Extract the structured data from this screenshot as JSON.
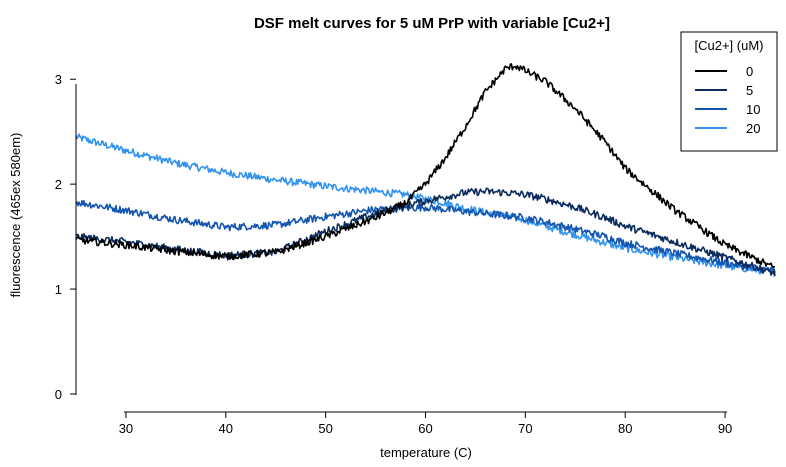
{
  "chart_data": {
    "type": "line",
    "title": "DSF melt curves for 5 uM PrP with variable [Cu2+]",
    "xlabel": "temperature (C)",
    "ylabel": "fluorescence (465ex 580em)",
    "xlim": [
      25,
      95
    ],
    "ylim": [
      0,
      3.45
    ],
    "xticks": [
      30,
      40,
      50,
      60,
      70,
      80,
      90
    ],
    "yticks": [
      0,
      1,
      2,
      3
    ],
    "grid": false,
    "legend": {
      "title": "[Cu2+] (uM)",
      "position": "top-right"
    },
    "x": [
      25,
      30,
      35,
      40,
      45,
      50,
      55,
      58,
      60,
      62,
      64,
      66,
      68,
      69,
      70,
      72,
      75,
      78,
      80,
      85,
      90,
      95
    ],
    "series": [
      {
        "name": "0",
        "color": "#000000",
        "values": [
          1.47,
          1.42,
          1.36,
          1.31,
          1.35,
          1.5,
          1.68,
          1.82,
          2.0,
          2.25,
          2.55,
          2.88,
          3.1,
          3.13,
          3.08,
          2.98,
          2.72,
          2.4,
          2.15,
          1.75,
          1.42,
          1.2
        ]
      },
      {
        "name": "5",
        "color": "#0d2c5e",
        "values": [
          1.5,
          1.45,
          1.38,
          1.32,
          1.35,
          1.55,
          1.72,
          1.8,
          1.84,
          1.88,
          1.92,
          1.93,
          1.92,
          1.91,
          1.9,
          1.86,
          1.78,
          1.68,
          1.6,
          1.45,
          1.3,
          1.15
        ]
      },
      {
        "name": "10",
        "color": "#1456b0",
        "values": [
          1.83,
          1.75,
          1.66,
          1.59,
          1.61,
          1.69,
          1.76,
          1.77,
          1.78,
          1.76,
          1.74,
          1.72,
          1.7,
          1.69,
          1.68,
          1.64,
          1.57,
          1.5,
          1.44,
          1.34,
          1.25,
          1.17
        ]
      },
      {
        "name": "20",
        "color": "#3493ee",
        "values": [
          2.45,
          2.32,
          2.2,
          2.11,
          2.04,
          1.98,
          1.93,
          1.9,
          1.86,
          1.82,
          1.77,
          1.73,
          1.7,
          1.68,
          1.66,
          1.6,
          1.52,
          1.44,
          1.39,
          1.3,
          1.22,
          1.16
        ]
      }
    ]
  }
}
